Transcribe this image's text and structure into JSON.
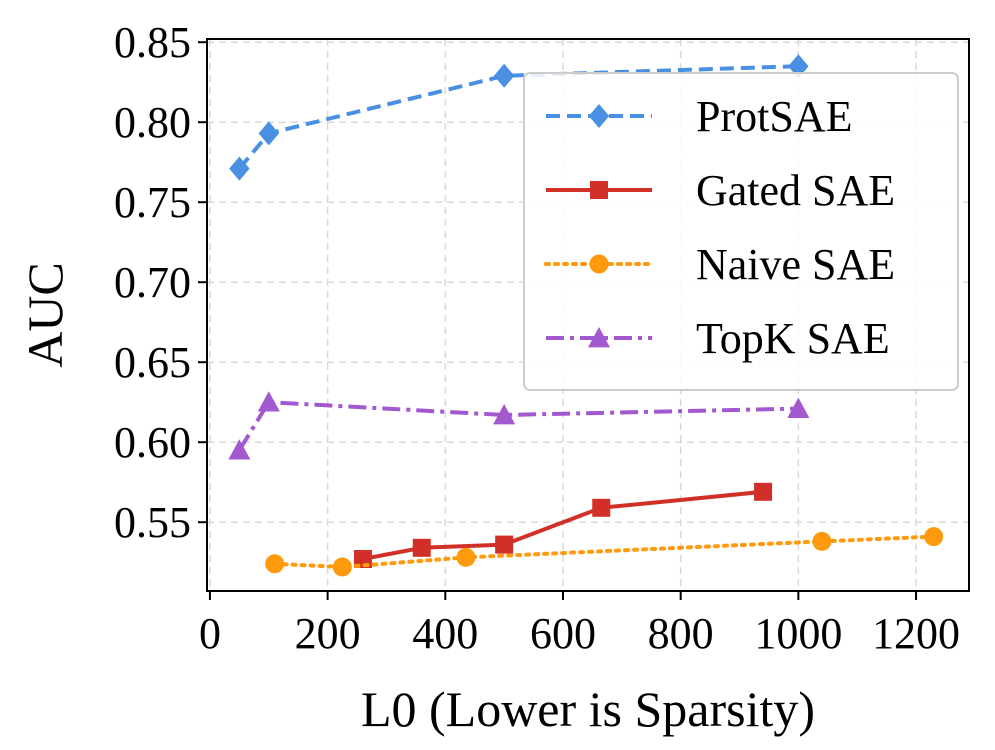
{
  "chart_data": {
    "type": "line",
    "title": "",
    "xlabel": "L0 (Lower is Sparsity)",
    "ylabel": "AUC",
    "xlim": [
      -5,
      1290
    ],
    "ylim": [
      0.507,
      0.852
    ],
    "xticks": [
      0,
      200,
      400,
      600,
      800,
      1000,
      1200
    ],
    "yticks": [
      0.55,
      0.6,
      0.65,
      0.7,
      0.75,
      0.8,
      0.85
    ],
    "xtick_labels": [
      "0",
      "200",
      "400",
      "600",
      "800",
      "1000",
      "1200"
    ],
    "ytick_labels": [
      "0.55",
      "0.60",
      "0.65",
      "0.70",
      "0.75",
      "0.80",
      "0.85"
    ],
    "grid": true,
    "legend_position": "upper-right",
    "series": [
      {
        "name": "ProtSAE",
        "color": "#4a90e2",
        "line_style": "dashed",
        "marker": "diamond",
        "x": [
          50,
          100,
          500,
          1000
        ],
        "y": [
          0.771,
          0.793,
          0.829,
          0.835
        ]
      },
      {
        "name": "Gated SAE",
        "color": "#d03027",
        "line_style": "solid",
        "marker": "square",
        "x": [
          260,
          360,
          500,
          665,
          940
        ],
        "y": [
          0.527,
          0.534,
          0.536,
          0.559,
          0.569
        ]
      },
      {
        "name": "Naive SAE",
        "color": "#ff9a0d",
        "line_style": "dotted",
        "marker": "circle",
        "x": [
          110,
          225,
          435,
          1040,
          1230
        ],
        "y": [
          0.524,
          0.522,
          0.528,
          0.538,
          0.541
        ]
      },
      {
        "name": "TopK SAE",
        "color": "#a259d0",
        "line_style": "dashdot",
        "marker": "triangle",
        "x": [
          50,
          100,
          500,
          1000
        ],
        "y": [
          0.595,
          0.625,
          0.617,
          0.621
        ]
      }
    ]
  }
}
